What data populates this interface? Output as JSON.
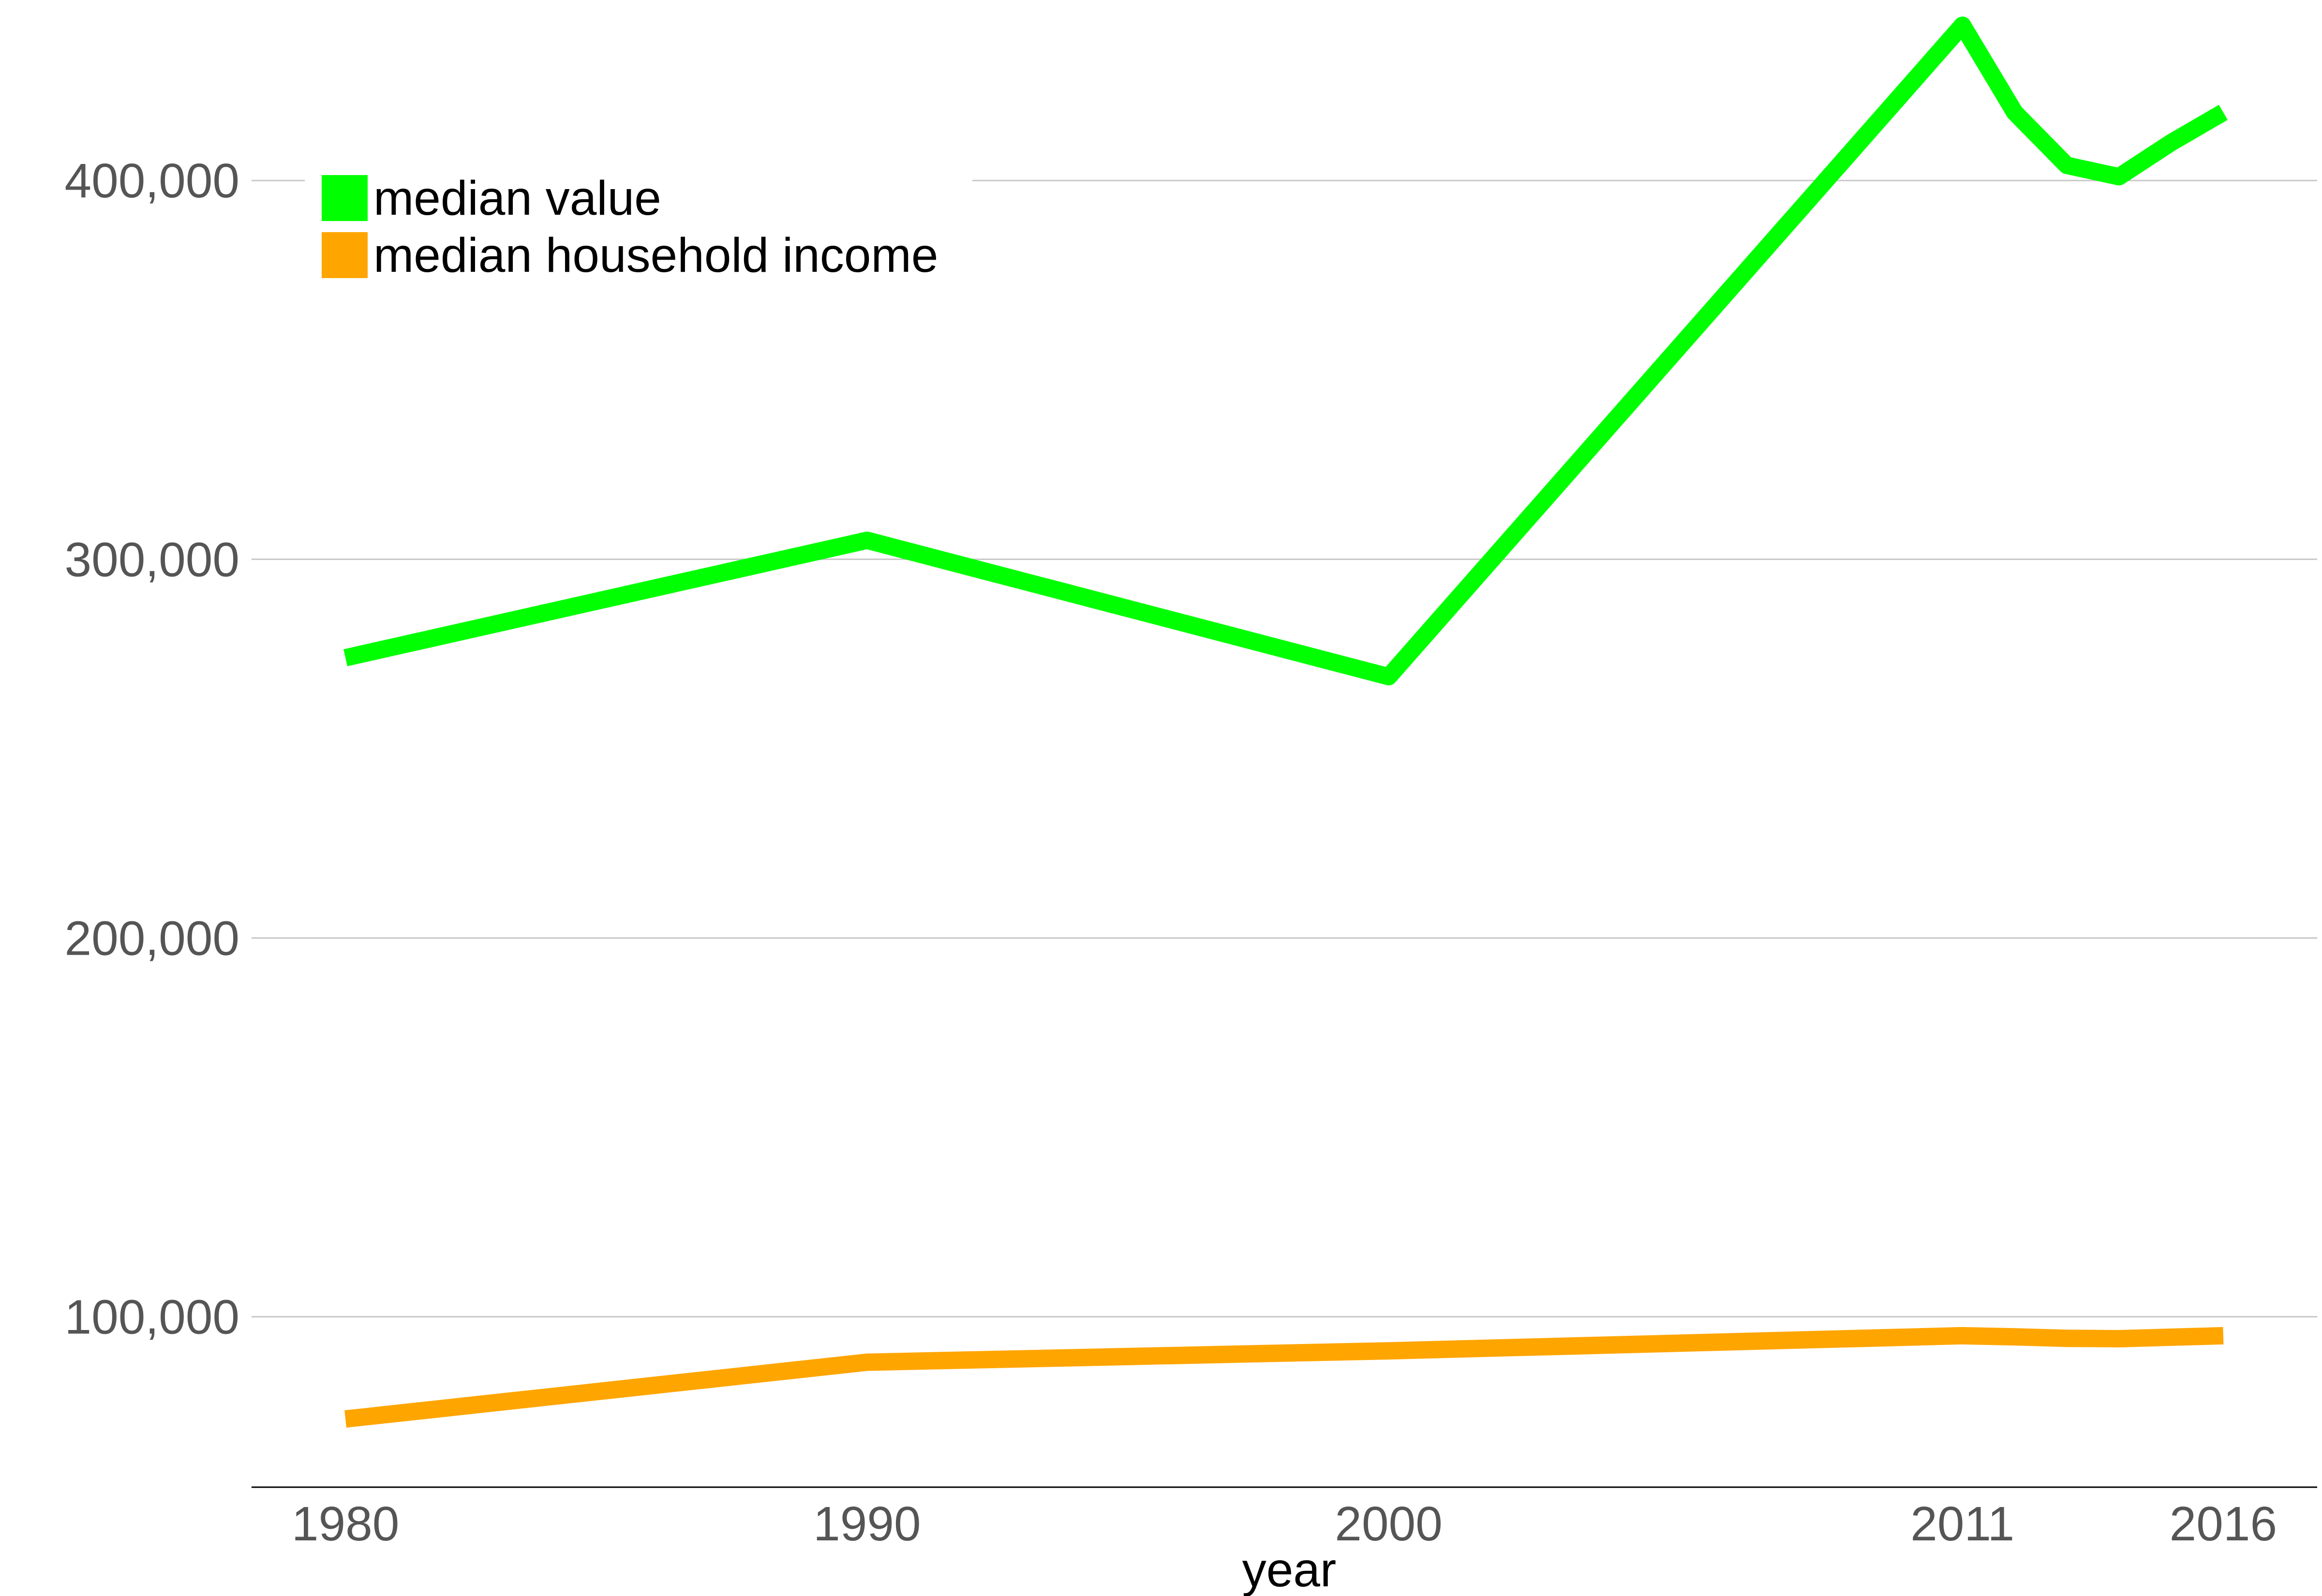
{
  "chart_data": {
    "type": "line",
    "xlabel": "year",
    "ylabel": "",
    "title": "",
    "x_ticks": [
      1980,
      1990,
      2000,
      2011,
      2016
    ],
    "x_tick_labels": [
      "1980",
      "1990",
      "2000",
      "2011",
      "2016"
    ],
    "xlim": [
      1978.2,
      2017.8
    ],
    "y_ticks": [
      100000,
      200000,
      300000,
      400000
    ],
    "y_tick_labels": [
      "100,000",
      "200,000",
      "300,000",
      "400,000"
    ],
    "ylim": [
      55000,
      440000
    ],
    "grid": "horizontal",
    "legend_position": "top-left",
    "series": [
      {
        "name": "median value",
        "color": "#00ff00",
        "x": [
          1980,
          1990,
          2000,
          2011,
          2012,
          2013,
          2014,
          2015,
          2016
        ],
        "y": [
          274000,
          305000,
          269000,
          441000,
          418000,
          404000,
          401000,
          410000,
          418000
        ]
      },
      {
        "name": "median household income",
        "color": "#ffa500",
        "x": [
          1980,
          1990,
          2000,
          2011,
          2012,
          2013,
          2014,
          2015,
          2016
        ],
        "y": [
          73000,
          88000,
          91000,
          95000,
          94700,
          94300,
          94200,
          94600,
          95000
        ]
      }
    ]
  }
}
